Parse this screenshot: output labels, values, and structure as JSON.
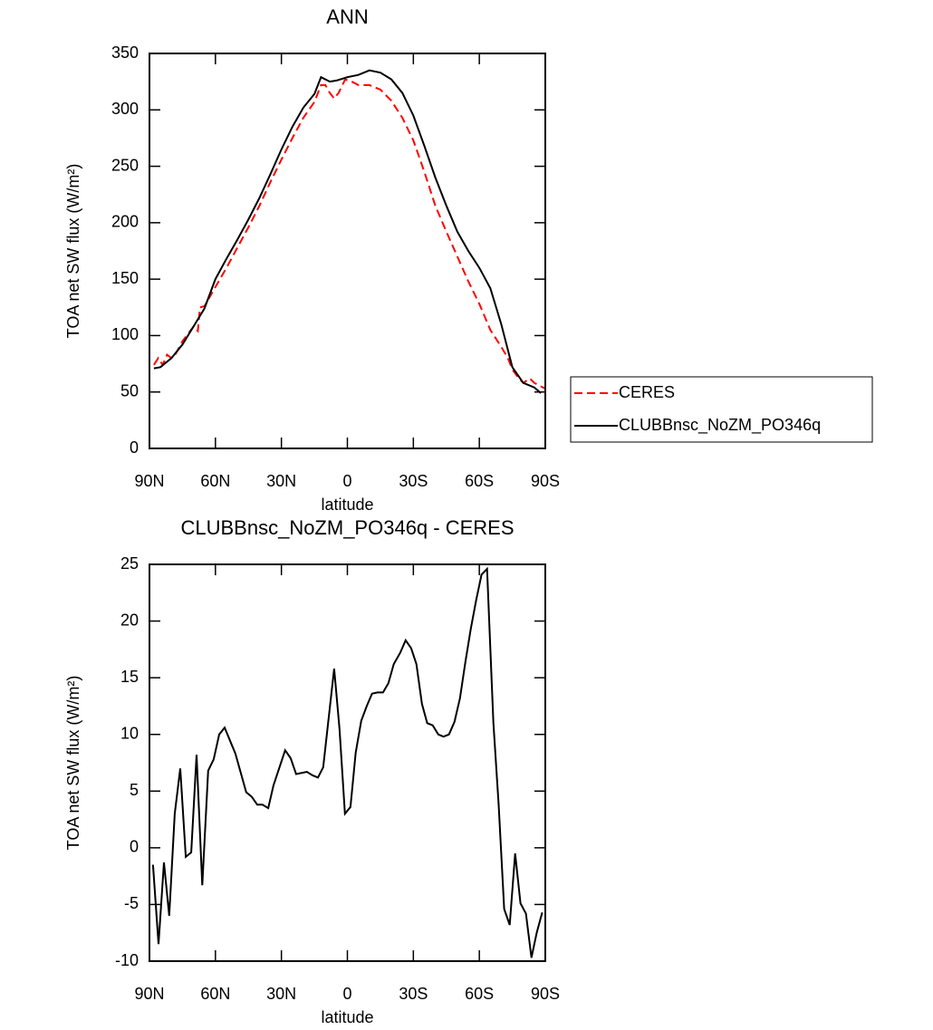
{
  "chart_data": [
    {
      "type": "line",
      "title": "ANN",
      "xlabel": "latitude",
      "ylabel": "TOA net SW flux (W/m²)",
      "xlim": [
        90,
        -90
      ],
      "xticks": [
        {
          "value": 90,
          "label": "90N"
        },
        {
          "value": 60,
          "label": "60N"
        },
        {
          "value": 30,
          "label": "30N"
        },
        0,
        {
          "value": -30,
          "label": "30S"
        },
        {
          "value": -60,
          "label": "60S"
        },
        {
          "value": -90,
          "label": "90S"
        }
      ],
      "ylim": [
        0,
        350
      ],
      "yticks": [
        0,
        50,
        100,
        150,
        200,
        250,
        300,
        350
      ],
      "legend": "right",
      "series": [
        {
          "name": "CERES",
          "color": "#ff0000",
          "line_style": "dashed",
          "x": [
            88,
            86,
            84,
            82,
            80,
            78,
            75,
            70,
            68,
            67,
            65,
            60,
            55,
            50,
            45,
            40,
            35,
            30,
            25,
            20,
            15,
            12,
            10,
            8,
            6,
            4,
            1,
            -2,
            -5,
            -10,
            -15,
            -20,
            -25,
            -30,
            -35,
            -40,
            -45,
            -50,
            -55,
            -60,
            -65,
            -70,
            -73,
            -75,
            -78,
            -80,
            -83,
            -85,
            -88,
            -90
          ],
          "values": [
            74,
            80,
            74,
            83,
            80,
            84,
            95,
            108,
            104,
            125,
            126,
            143,
            160,
            178,
            196,
            215,
            236,
            256,
            275,
            293,
            307,
            322,
            322,
            315,
            310,
            315,
            327,
            325,
            322,
            322,
            318,
            308,
            293,
            273,
            245,
            215,
            192,
            170,
            148,
            128,
            105,
            90,
            80,
            70,
            62,
            58,
            62,
            58,
            55,
            53
          ]
        },
        {
          "name": "CLUBBnsc_NoZM_PO346q",
          "color": "#000000",
          "line_style": "solid",
          "x": [
            88,
            85,
            80,
            75,
            70,
            65,
            60,
            55,
            50,
            45,
            40,
            35,
            30,
            25,
            20,
            15,
            12,
            8,
            5,
            0,
            -5,
            -10,
            -15,
            -20,
            -25,
            -30,
            -35,
            -40,
            -45,
            -50,
            -55,
            -60,
            -65,
            -70,
            -75,
            -80,
            -85,
            -88
          ],
          "values": [
            71,
            72,
            80,
            92,
            108,
            124,
            150,
            168,
            185,
            203,
            222,
            243,
            265,
            285,
            302,
            314,
            329,
            325,
            326,
            329,
            331,
            335,
            333,
            327,
            315,
            295,
            268,
            240,
            215,
            192,
            175,
            160,
            142,
            110,
            72,
            58,
            54,
            49
          ]
        }
      ]
    },
    {
      "type": "line",
      "title": "CLUBBnsc_NoZM_PO346q - CERES",
      "xlabel": "latitude",
      "ylabel": "TOA net SW flux (W/m²)",
      "xlim": [
        90,
        -90
      ],
      "xticks": [
        {
          "value": 90,
          "label": "90N"
        },
        {
          "value": 60,
          "label": "60N"
        },
        {
          "value": 30,
          "label": "30N"
        },
        0,
        {
          "value": -30,
          "label": "30S"
        },
        {
          "value": -60,
          "label": "60S"
        },
        {
          "value": -90,
          "label": "90S"
        }
      ],
      "ylim": [
        -10,
        25
      ],
      "yticks": [
        -10,
        -5,
        0,
        5,
        10,
        15,
        20,
        25
      ],
      "series": [
        {
          "color": "#000000",
          "line_style": "solid",
          "x": [
            88.4,
            85.9,
            83.4,
            81,
            78.5,
            76,
            73.5,
            71,
            68.6,
            66,
            63.3,
            60.8,
            58.3,
            55.8,
            50.9,
            46,
            43.5,
            41,
            38.6,
            36,
            33.6,
            28.3,
            25.8,
            23.3,
            18.4,
            15.9,
            13.4,
            11,
            6,
            3.6,
            1.1,
            -1.4,
            -3.8,
            -6.3,
            -8.8,
            -11.2,
            -13.7,
            -16.2,
            -18.6,
            -21.1,
            -24,
            -26.5,
            -29,
            -31.4,
            -33.9,
            -36.3,
            -38.8,
            -41.3,
            -43.7,
            -46.2,
            -48.7,
            -51.2,
            -53.6,
            -56.1,
            -58.6,
            -61,
            -63.5,
            -66.4,
            -68.8,
            -71.3,
            -73.8,
            -76.3,
            -78.7,
            -81.2,
            -83.7,
            -86.1,
            -88.6
          ],
          "values": [
            -1.5,
            -8.5,
            -1.3,
            -6,
            3,
            7,
            -0.8,
            -0.4,
            8.2,
            -3.3,
            6.8,
            7.8,
            10,
            10.6,
            8.3,
            4.9,
            4.5,
            3.8,
            3.8,
            3.5,
            5.5,
            8.6,
            7.9,
            6.5,
            6.7,
            6.4,
            6.2,
            7.1,
            15.8,
            10.5,
            3,
            3.6,
            8.4,
            11.2,
            12.5,
            13.6,
            13.7,
            13.7,
            14.5,
            16.2,
            17.2,
            18.3,
            17.6,
            16.2,
            12.7,
            11,
            10.8,
            10,
            9.8,
            10,
            11.1,
            13.2,
            16.3,
            19.3,
            21.9,
            24.1,
            24.6,
            11,
            3.8,
            -5.4,
            -6.8,
            -0.5,
            -4.9,
            -5.8,
            -9.7,
            -7.5,
            -5.7
          ]
        }
      ]
    }
  ]
}
